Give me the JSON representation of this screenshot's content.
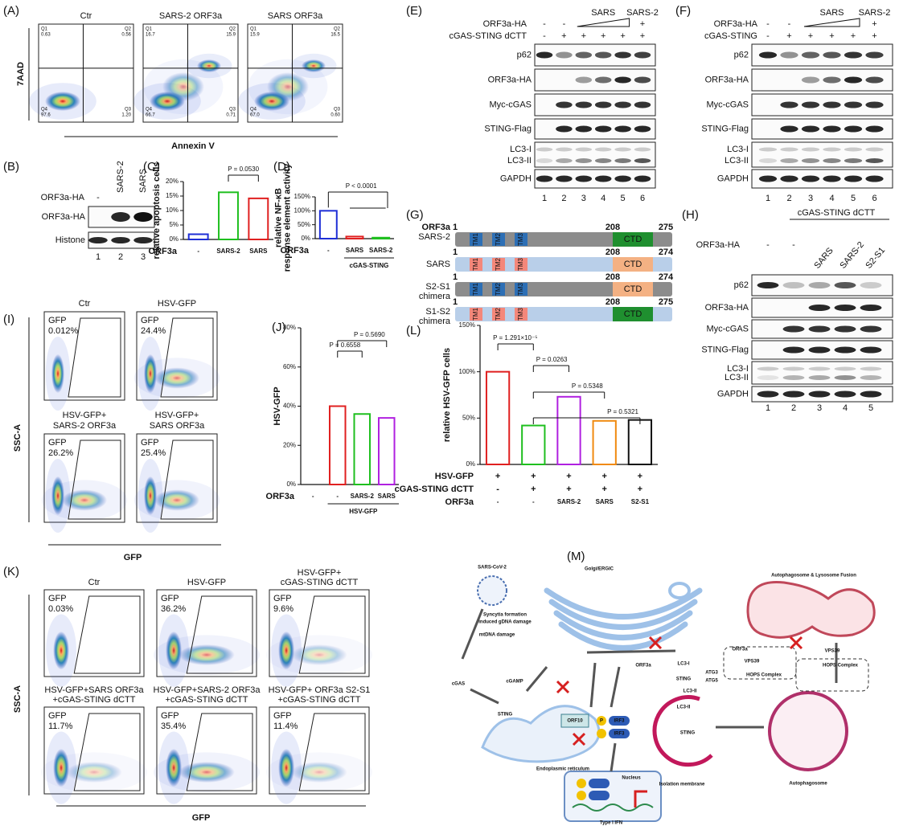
{
  "panel_labels": [
    "(A)",
    "(B)",
    "(C)",
    "(D)",
    "(E)",
    "(F)",
    "(G)",
    "(H)",
    "(I)",
    "(J)",
    "(K)",
    "(L)",
    "(M)"
  ],
  "A": {
    "plots": [
      {
        "title": "Ctr",
        "quadrants": [
          "Q1",
          "0.63",
          "Q2",
          "0.56",
          "Q4",
          "97.6",
          "Q3",
          "1.20"
        ]
      },
      {
        "title": "SARS-2 ORF3a",
        "quadrants": [
          "Q1",
          "16.7",
          "Q2",
          "15.9",
          "Q4",
          "66.7",
          "Q3",
          "0.71"
        ]
      },
      {
        "title": "SARS ORF3a",
        "quadrants": [
          "Q1",
          "15.9",
          "Q2",
          "16.5",
          "Q4",
          "67.0",
          "Q3",
          "0.60"
        ]
      }
    ],
    "y_label": "7AAD",
    "x_label": "Annexin V"
  },
  "B": {
    "row_label": "ORF3a-HA",
    "columns": [
      "-",
      "SARS-2",
      "SARS"
    ],
    "bands": [
      "ORF3a-HA",
      "Histone"
    ],
    "lanes": [
      "1",
      "2",
      "3"
    ]
  },
  "E": {
    "orf_label": "ORF3a-HA",
    "orf_marks": [
      "-",
      "-",
      "+"
    ],
    "groups": [
      "SARS",
      "SARS-2"
    ],
    "cgas_label": "cGAS-STING dCTT",
    "cgas_marks": [
      "-",
      "+",
      "+",
      "+",
      "+",
      "+"
    ],
    "bands": [
      "p62",
      "ORF3a-HA",
      "Myc-cGAS",
      "STING-Flag",
      "LC3-I",
      "LC3-II",
      "GAPDH"
    ],
    "lanes": [
      "1",
      "2",
      "3",
      "4",
      "5",
      "6"
    ]
  },
  "F": {
    "orf_label": "ORF3a-HA",
    "orf_marks": [
      "-",
      "-",
      "+"
    ],
    "groups": [
      "SARS",
      "SARS-2"
    ],
    "cgas_label": "cGAS-STING",
    "cgas_marks": [
      "-",
      "+",
      "+",
      "+",
      "+",
      "+"
    ],
    "bands": [
      "p62",
      "ORF3a-HA",
      "Myc-cGAS",
      "STING-Flag",
      "LC3-I",
      "LC3-II",
      "GAPDH"
    ],
    "lanes": [
      "1",
      "2",
      "3",
      "4",
      "5",
      "6"
    ]
  },
  "G": {
    "header": "ORF3a",
    "tm": [
      "TM1",
      "TM2",
      "TM3"
    ],
    "ctd": "CTD",
    "constructs": [
      {
        "name": [
          "SARS-2"
        ],
        "start": "1",
        "mid": "208",
        "end": "275"
      },
      {
        "name": [
          "SARS"
        ],
        "start": "1",
        "mid": "208",
        "end": "274"
      },
      {
        "name": [
          "S2-S1",
          "chimera"
        ],
        "start": "1",
        "mid": "208",
        "end": "274"
      },
      {
        "name": [
          "S1-S2",
          "chimera"
        ],
        "start": "1",
        "mid": "208",
        "end": "275"
      }
    ]
  },
  "H": {
    "header": "cGAS-STING dCTT",
    "orf_label": "ORF3a-HA",
    "columns": [
      "-",
      "-",
      "SARS",
      "SARS-2",
      "S2-S1"
    ],
    "bands": [
      "p62",
      "ORF3a-HA",
      "Myc-cGAS",
      "STING-Flag",
      "LC3-I",
      "LC3-II",
      "GAPDH"
    ],
    "lanes": [
      "1",
      "2",
      "3",
      "4",
      "5"
    ]
  },
  "I": {
    "plots": [
      {
        "title": [
          "Ctr"
        ],
        "gate": "GFP",
        "percent": "0.012%"
      },
      {
        "title": [
          "HSV-GFP"
        ],
        "gate": "GFP",
        "percent": "24.4%"
      },
      {
        "title": [
          "HSV-GFP+",
          "SARS-2 ORF3a"
        ],
        "gate": "GFP",
        "percent": "26.2%"
      },
      {
        "title": [
          "HSV-GFP+",
          "SARS ORF3a"
        ],
        "gate": "GFP",
        "percent": "25.4%"
      }
    ],
    "y_label": "SSC-A",
    "x_label": "GFP"
  },
  "K": {
    "plots": [
      {
        "title": [
          "Ctr"
        ],
        "gate": "GFP",
        "percent": "0.03%"
      },
      {
        "title": [
          "HSV-GFP"
        ],
        "gate": "GFP",
        "percent": "36.2%"
      },
      {
        "title": [
          "HSV-GFP+",
          "cGAS-STING dCTT"
        ],
        "gate": "GFP",
        "percent": "9.6%"
      },
      {
        "title": [
          "HSV-GFP+SARS ORF3a",
          "+cGAS-STING dCTT"
        ],
        "gate": "GFP",
        "percent": "11.7%"
      },
      {
        "title": [
          "HSV-GFP+SARS-2 ORF3a",
          "+cGAS-STING dCTT"
        ],
        "gate": "GFP",
        "percent": "35.4%"
      },
      {
        "title": [
          "HSV-GFP+ ORF3a S2-S1",
          "+cGAS-STING dCTT"
        ],
        "gate": "GFP",
        "percent": "11.4%"
      }
    ],
    "y_label": "SSC-A",
    "x_label": "GFP"
  },
  "M": {
    "labels": [
      "SARS-CoV-2",
      "Syncytia formation",
      "induced gDNA damage",
      "mtDNA damage",
      "cGAS",
      "cGAMP",
      "Golgi/ERGIC",
      "ORF3a",
      "STING",
      "ORF10",
      "Endoplasmic reticulum",
      "IRF3",
      "IRF3",
      "P",
      "Nucleus",
      "Type I IFN",
      "LC3-I",
      "STING",
      "ATG3",
      "ATG5",
      "LC3-II",
      "LC3-II",
      "STING",
      "Isolation membrane",
      "Autophagosome & Lysosome Fusion",
      "ORF3a",
      "VPS39",
      "HOPS Complex",
      "VPS39",
      "HOPS Complex",
      "Autophagosome"
    ]
  },
  "chart_data": [
    {
      "type": "bar",
      "y_label": [
        "relative apoptosis cells"
      ],
      "x_label": "ORF3a",
      "categories": [
        "-",
        "SARS-2",
        "SARS"
      ],
      "values": [
        1.8,
        16.3,
        14.2
      ],
      "colors": [
        "#1f2fd6",
        "#1fbf1f",
        "#e02020"
      ],
      "ylim": [
        0,
        20
      ],
      "yticks": [
        {
          "value": 0,
          "label": "0%"
        },
        {
          "value": 5,
          "label": "5%"
        },
        {
          "value": 10,
          "label": "10%"
        },
        {
          "value": 15,
          "label": "15%"
        },
        {
          "value": 20,
          "label": "20%"
        }
      ],
      "annotations": [
        "P = 0.0530"
      ]
    },
    {
      "type": "bar",
      "y_label": [
        "relative NF-κB",
        "response element activity"
      ],
      "x_label": "ORF3a",
      "categories": [
        "-",
        "SARS",
        "SARS-2"
      ],
      "values": [
        100,
        7.5,
        3.5
      ],
      "colors": [
        "#1f2fd6",
        "#e02020",
        "#1fbf1f"
      ],
      "ylim": [
        0,
        150
      ],
      "yticks": [
        {
          "value": 0,
          "label": "0%"
        },
        {
          "value": 50,
          "label": "50%"
        },
        {
          "value": 100,
          "label": "100%"
        },
        {
          "value": 150,
          "label": "150%"
        }
      ],
      "annotations": [
        "P < 0.0001"
      ],
      "group_label": "cGAS-STING"
    },
    {
      "type": "bar",
      "y_label": [
        "HSV-GFP"
      ],
      "x_label": "ORF3a",
      "categories": [
        "-",
        "-",
        "SARS-2",
        "SARS"
      ],
      "values": [
        0,
        40,
        36,
        34
      ],
      "colors": [
        "#1f2fd6",
        "#e02020",
        "#1fbf1f",
        "#b020e0"
      ],
      "ylim": [
        0,
        80
      ],
      "yticks": [
        {
          "value": 0,
          "label": "0%"
        },
        {
          "value": 20,
          "label": "20%"
        },
        {
          "value": 40,
          "label": "40%"
        },
        {
          "value": 60,
          "label": "60%"
        },
        {
          "value": 80,
          "label": "80%"
        }
      ],
      "annotations": [
        "P = 0.6558",
        "P = 0.5690"
      ],
      "group_label": "HSV-GFP"
    },
    {
      "type": "bar",
      "y_label": [
        "relative HSV-GFP cells"
      ],
      "x_label": "ORF3a",
      "categories": [
        "-",
        "-",
        "SARS-2",
        "SARS",
        "S2-S1"
      ],
      "values": [
        100,
        42,
        73,
        47,
        48
      ],
      "colors": [
        "#e02020",
        "#1fbf1f",
        "#b020e0",
        "#f08a10",
        "#111111"
      ],
      "ylim": [
        0,
        150
      ],
      "yticks": [
        {
          "value": 0,
          "label": "0%"
        },
        {
          "value": 50,
          "label": "50%"
        },
        {
          "value": 100,
          "label": "100%"
        },
        {
          "value": 150,
          "label": "150%"
        }
      ],
      "annotations": [
        "P = 1.291×10⁻⁵",
        "P = 0.0263",
        "P = 0.5348",
        "P = 0.5321"
      ],
      "rows": [
        {
          "name": "HSV-GFP",
          "marks": [
            "+",
            "+",
            "+",
            "+",
            "+"
          ]
        },
        {
          "name": "cGAS-STING dCTT",
          "marks": [
            "-",
            "+",
            "+",
            "+",
            "+"
          ]
        }
      ]
    }
  ]
}
